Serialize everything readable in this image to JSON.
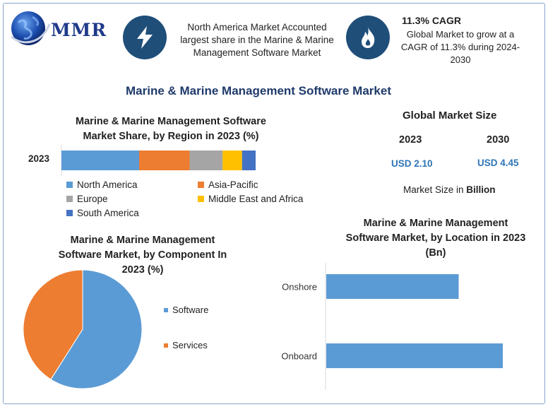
{
  "logo": {
    "text": "MMR",
    "icon": "globe-icon"
  },
  "highlight_1": {
    "icon": "lightning-icon",
    "lines": [
      "North America Market Accounted",
      "largest share in the Marine & Marine",
      "Management Software Market"
    ]
  },
  "highlight_2": {
    "icon": "flame-icon",
    "title": "11.3% CAGR",
    "lines": [
      "Global Market to grow at a",
      "CAGR of 11.3% during 2024-",
      "2030"
    ]
  },
  "main_title": "Marine & Marine Management Software Market",
  "global_market": {
    "title": "Global Market Size",
    "year_1": "2023",
    "year_2": "2030",
    "value_1": "USD 2.10",
    "value_2": "USD 4.45",
    "note_prefix": "Market Size in ",
    "note_unit": "Billion"
  },
  "colors": {
    "blue": "#5b9bd5",
    "orange": "#ed7d31",
    "gray": "#a5a5a5",
    "yellow": "#ffc000",
    "darkblue": "#4472c4",
    "icon_bg": "#1f4e79",
    "title": "#1f3a6b"
  },
  "chart_data": [
    {
      "type": "bar",
      "orientation": "horizontal-stacked",
      "title_lines": [
        "Marine & Marine Management Software",
        "Market Share, by Region in 2023 (%)"
      ],
      "categories": [
        "2023"
      ],
      "series": [
        {
          "name": "North America",
          "values": [
            40
          ],
          "color": "#5b9bd5"
        },
        {
          "name": "Asia-Pacific",
          "values": [
            26
          ],
          "color": "#ed7d31"
        },
        {
          "name": "Europe",
          "values": [
            17
          ],
          "color": "#a5a5a5"
        },
        {
          "name": "Middle East and Africa",
          "values": [
            10
          ],
          "color": "#ffc000"
        },
        {
          "name": "South America",
          "values": [
            7
          ],
          "color": "#4472c4"
        }
      ],
      "legend": "bottom"
    },
    {
      "type": "pie",
      "title_lines": [
        "Marine & Marine Management",
        "Software Market, by Component In",
        "2023 (%)"
      ],
      "labels": [
        "Software",
        "Services"
      ],
      "values": [
        59,
        41
      ],
      "colors": [
        "#5b9bd5",
        "#ed7d31"
      ],
      "legend": "right"
    },
    {
      "type": "bar",
      "orientation": "horizontal",
      "title_lines": [
        "Marine & Marine Management",
        "Software Market, by Location in 2023",
        "(Bn)"
      ],
      "categories": [
        "Onshore",
        "Onboard"
      ],
      "values": [
        0.75,
        1.0
      ],
      "color": "#5b9bd5",
      "xlim": [
        0,
        1.2
      ]
    }
  ]
}
